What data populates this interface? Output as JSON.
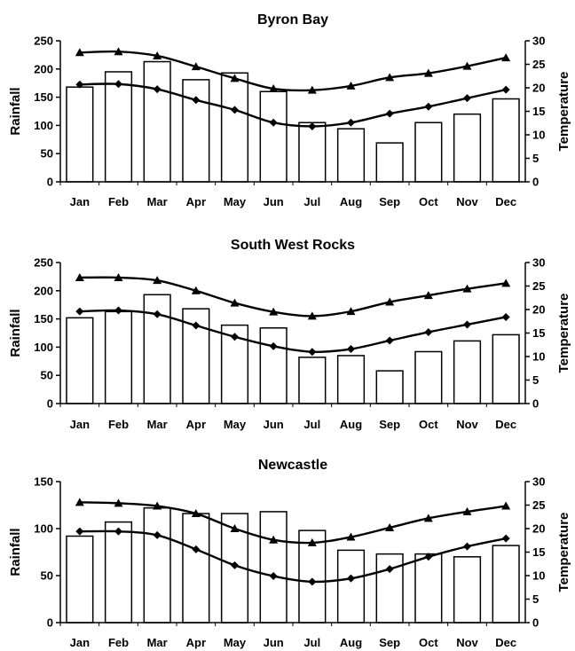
{
  "chart_data": [
    {
      "type": "bar",
      "title": "Byron Bay",
      "ylabel": "Rainfall",
      "y2label": "Temperature",
      "ylim": [
        0,
        250
      ],
      "yticks": [
        0,
        50,
        100,
        150,
        200,
        250
      ],
      "y2lim": [
        0,
        30
      ],
      "y2ticks": [
        0,
        5,
        10,
        15,
        20,
        25,
        30
      ],
      "categories": [
        "Jan",
        "Feb",
        "Mar",
        "Apr",
        "May",
        "Jun",
        "Jul",
        "Aug",
        "Sep",
        "Oct",
        "Nov",
        "Dec"
      ],
      "bars": [
        168,
        195,
        213,
        181,
        193,
        160,
        105,
        94,
        69,
        105,
        120,
        147
      ],
      "lines": [
        {
          "marker": "triangle",
          "values": [
            27.5,
            27.7,
            26.8,
            24.5,
            22.0,
            19.8,
            19.5,
            20.4,
            22.2,
            23.1,
            24.6,
            26.4
          ]
        },
        {
          "marker": "diamond",
          "values": [
            20.7,
            20.8,
            19.7,
            17.4,
            15.3,
            12.6,
            11.8,
            12.6,
            14.5,
            16.0,
            17.8,
            19.6
          ]
        }
      ]
    },
    {
      "type": "bar",
      "title": "South West Rocks",
      "ylabel": "Rainfall",
      "y2label": "Temperature",
      "ylim": [
        0,
        250
      ],
      "yticks": [
        0,
        50,
        100,
        150,
        200,
        250
      ],
      "y2lim": [
        0,
        30
      ],
      "y2ticks": [
        0,
        5,
        10,
        15,
        20,
        25,
        30
      ],
      "categories": [
        "Jan",
        "Feb",
        "Mar",
        "Apr",
        "May",
        "Jun",
        "Jul",
        "Aug",
        "Sep",
        "Oct",
        "Nov",
        "Dec"
      ],
      "bars": [
        152,
        163,
        193,
        168,
        139,
        134,
        82,
        85,
        58,
        92,
        111,
        122
      ],
      "lines": [
        {
          "marker": "triangle",
          "values": [
            26.8,
            26.8,
            26.2,
            24.0,
            21.4,
            19.5,
            18.6,
            19.6,
            21.6,
            23.0,
            24.4,
            25.6
          ]
        },
        {
          "marker": "diamond",
          "values": [
            19.6,
            19.8,
            19.0,
            16.6,
            14.2,
            12.2,
            11.0,
            11.6,
            13.4,
            15.2,
            16.8,
            18.4
          ]
        }
      ]
    },
    {
      "type": "bar",
      "title": "Newcastle",
      "ylabel": "Rainfall",
      "y2label": "Temperature",
      "ylim": [
        0,
        150
      ],
      "yticks": [
        0,
        50,
        100,
        150
      ],
      "y2lim": [
        0,
        30
      ],
      "y2ticks": [
        0,
        5,
        10,
        15,
        20,
        25,
        30
      ],
      "categories": [
        "Jan",
        "Feb",
        "Mar",
        "Apr",
        "May",
        "Jun",
        "Jul",
        "Aug",
        "Sep",
        "Oct",
        "Nov",
        "Dec"
      ],
      "bars": [
        92,
        107,
        122,
        116,
        116,
        118,
        98,
        77,
        73,
        73,
        70,
        82
      ],
      "lines": [
        {
          "marker": "triangle",
          "values": [
            25.6,
            25.4,
            24.8,
            23.2,
            20.0,
            17.6,
            17.0,
            18.2,
            20.2,
            22.2,
            23.6,
            24.8
          ]
        },
        {
          "marker": "diamond",
          "values": [
            19.4,
            19.4,
            18.6,
            15.6,
            12.2,
            9.9,
            8.7,
            9.4,
            11.4,
            14.0,
            16.2,
            17.9
          ]
        }
      ]
    }
  ]
}
